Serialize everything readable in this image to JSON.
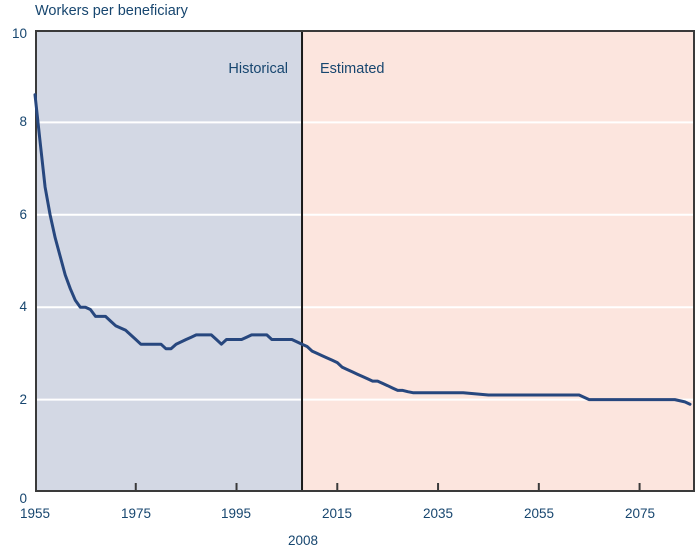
{
  "chart_data": {
    "type": "line",
    "title": "Workers per beneficiary",
    "xlabel": "",
    "ylabel": "Workers per beneficiary",
    "xlim": [
      1955,
      2086
    ],
    "ylim": [
      0,
      10
    ],
    "xticks": [
      1955,
      1975,
      1995,
      2015,
      2035,
      2055,
      2075
    ],
    "yticks": [
      10,
      8,
      6,
      4,
      2,
      0
    ],
    "gridlines_y": [
      2,
      4,
      6,
      8
    ],
    "grid": "horizontal white gridlines at 2,4,6,8",
    "legend": "none",
    "divider": {
      "year": 2008,
      "label": "2008"
    },
    "regions": [
      {
        "name": "Historical",
        "from": 1955,
        "to": 2008,
        "color": "#d3d8e4"
      },
      {
        "name": "Estimated",
        "from": 2008,
        "to": 2086,
        "color": "#fce5de"
      }
    ],
    "colors": {
      "line": "#27477e",
      "grid": "#ffffff",
      "border": "#3a3a3a",
      "divider": "#1a1a1a",
      "text": "#17466f",
      "historical_bg": "#d3d8e4",
      "estimated_bg": "#fce5de"
    },
    "series": [
      {
        "name": "Workers per beneficiary",
        "color": "#27477e",
        "points": [
          [
            1955,
            8.6
          ],
          [
            1956,
            7.6
          ],
          [
            1957,
            6.6
          ],
          [
            1958,
            6.0
          ],
          [
            1959,
            5.5
          ],
          [
            1960,
            5.1
          ],
          [
            1961,
            4.7
          ],
          [
            1962,
            4.4
          ],
          [
            1963,
            4.15
          ],
          [
            1964,
            4.0
          ],
          [
            1965,
            4.0
          ],
          [
            1966,
            3.95
          ],
          [
            1967,
            3.8
          ],
          [
            1968,
            3.8
          ],
          [
            1969,
            3.8
          ],
          [
            1970,
            3.7
          ],
          [
            1971,
            3.6
          ],
          [
            1972,
            3.55
          ],
          [
            1973,
            3.5
          ],
          [
            1974,
            3.4
          ],
          [
            1975,
            3.3
          ],
          [
            1976,
            3.2
          ],
          [
            1977,
            3.2
          ],
          [
            1978,
            3.2
          ],
          [
            1979,
            3.2
          ],
          [
            1980,
            3.2
          ],
          [
            1981,
            3.1
          ],
          [
            1982,
            3.1
          ],
          [
            1983,
            3.2
          ],
          [
            1984,
            3.25
          ],
          [
            1985,
            3.3
          ],
          [
            1986,
            3.35
          ],
          [
            1987,
            3.4
          ],
          [
            1988,
            3.4
          ],
          [
            1989,
            3.4
          ],
          [
            1990,
            3.4
          ],
          [
            1991,
            3.3
          ],
          [
            1992,
            3.2
          ],
          [
            1993,
            3.3
          ],
          [
            1994,
            3.3
          ],
          [
            1995,
            3.3
          ],
          [
            1996,
            3.3
          ],
          [
            1997,
            3.35
          ],
          [
            1998,
            3.4
          ],
          [
            1999,
            3.4
          ],
          [
            2000,
            3.4
          ],
          [
            2001,
            3.4
          ],
          [
            2002,
            3.3
          ],
          [
            2003,
            3.3
          ],
          [
            2004,
            3.3
          ],
          [
            2005,
            3.3
          ],
          [
            2006,
            3.3
          ],
          [
            2007,
            3.25
          ],
          [
            2008,
            3.2
          ],
          [
            2009,
            3.15
          ],
          [
            2010,
            3.05
          ],
          [
            2011,
            3.0
          ],
          [
            2012,
            2.95
          ],
          [
            2013,
            2.9
          ],
          [
            2014,
            2.85
          ],
          [
            2015,
            2.8
          ],
          [
            2016,
            2.7
          ],
          [
            2017,
            2.65
          ],
          [
            2018,
            2.6
          ],
          [
            2019,
            2.55
          ],
          [
            2020,
            2.5
          ],
          [
            2021,
            2.45
          ],
          [
            2022,
            2.4
          ],
          [
            2023,
            2.4
          ],
          [
            2024,
            2.35
          ],
          [
            2025,
            2.3
          ],
          [
            2026,
            2.25
          ],
          [
            2027,
            2.2
          ],
          [
            2028,
            2.2
          ],
          [
            2029,
            2.17
          ],
          [
            2030,
            2.15
          ],
          [
            2035,
            2.15
          ],
          [
            2040,
            2.15
          ],
          [
            2045,
            2.1
          ],
          [
            2050,
            2.1
          ],
          [
            2055,
            2.1
          ],
          [
            2060,
            2.1
          ],
          [
            2063,
            2.1
          ],
          [
            2065,
            2.0
          ],
          [
            2070,
            2.0
          ],
          [
            2075,
            2.0
          ],
          [
            2080,
            2.0
          ],
          [
            2082,
            2.0
          ],
          [
            2084,
            1.95
          ],
          [
            2085,
            1.9
          ]
        ]
      }
    ]
  }
}
